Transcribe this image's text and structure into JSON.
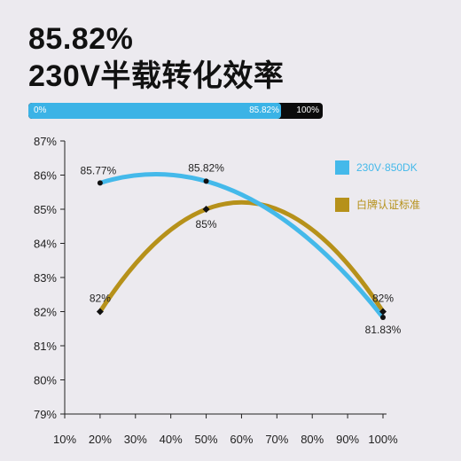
{
  "headline": {
    "value": "85.82%",
    "subtitle": "230V半载转化效率"
  },
  "efficiency_bar": {
    "min_label": "0%",
    "value_label": "85.82%",
    "max_label": "100%",
    "fraction": 0.8582,
    "fill_color": "#3bb3e6",
    "track_color": "#0b0b0b"
  },
  "chart_data": {
    "type": "line",
    "x": [
      20,
      50,
      100
    ],
    "xlim": [
      10,
      100
    ],
    "ylim": [
      79,
      87
    ],
    "x_ticks": [
      "10%",
      "20%",
      "30%",
      "40%",
      "50%",
      "60%",
      "70%",
      "80%",
      "90%",
      "100%"
    ],
    "y_ticks": [
      "79%",
      "80%",
      "81%",
      "82%",
      "83%",
      "84%",
      "85%",
      "86%",
      "87%"
    ],
    "grid": false,
    "legend_position": "right",
    "series": [
      {
        "name": "230V·850DK",
        "values": [
          85.77,
          85.82,
          81.83
        ],
        "labels": [
          "85.77%",
          "85.82%",
          "81.83%"
        ],
        "color": "#44b9ea",
        "marker": "circle"
      },
      {
        "name": "白牌认证标准",
        "values": [
          82,
          85,
          82
        ],
        "labels": [
          "82%",
          "85%",
          "82%"
        ],
        "color": "#b6911a",
        "marker": "diamond"
      }
    ]
  }
}
